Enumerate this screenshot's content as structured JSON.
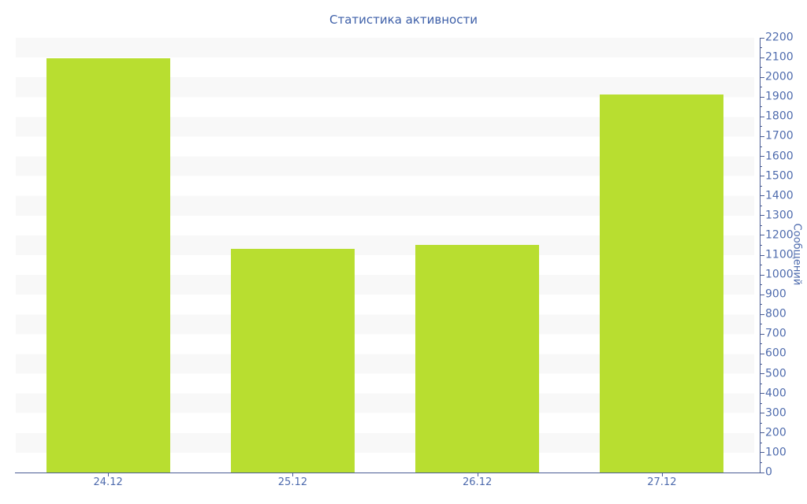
{
  "chart_data": {
    "type": "bar",
    "title": "Статистика активности",
    "xlabel": "",
    "ylabel": "Сообщений",
    "categories": [
      "24.12",
      "25.12",
      "26.12",
      "27.12"
    ],
    "values": [
      2095,
      1130,
      1150,
      1915
    ],
    "ylim": [
      0,
      2200
    ],
    "ytick_interval": 100,
    "minor_tick_interval": 50,
    "yticks": [
      0,
      100,
      200,
      300,
      400,
      500,
      600,
      700,
      800,
      900,
      1000,
      1100,
      1200,
      1300,
      1400,
      1500,
      1600,
      1700,
      1800,
      1900,
      2000,
      2100,
      2200
    ],
    "yaxis_position": "right",
    "legend": "none",
    "grid": "striped-horizontal-bands",
    "colors": {
      "bar": "#b8de30",
      "title_text": "#3d5fa8",
      "axis_text": "#4e6bad",
      "axis_line": "#4a5c94",
      "stripe": "#f8f8f8",
      "background": "#ffffff"
    }
  }
}
